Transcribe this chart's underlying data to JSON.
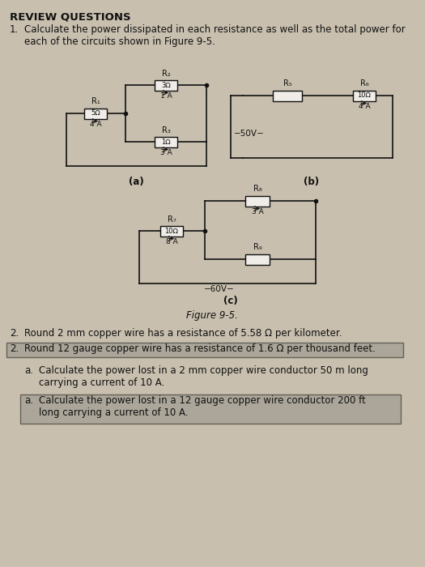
{
  "bg_color": "#c8bfae",
  "title": "REVIEW QUESTIONS",
  "figure_label": "Figure 9-5.",
  "q1_text_num": "1.",
  "q1_text_body": "Calculate the power dissipated in each resistance as well as the total power for\neach of the circuits shown in Figure 9-5.",
  "q2_metric_num": "2.",
  "q2_metric_body": "Round 2 mm copper wire has a resistance of 5.58 Ω per kilometer.",
  "q2_imperial_num": "2.",
  "q2_imperial_body": "Round 12 gauge copper wire has a resistance of 1.6 Ω per thousand feet.",
  "q2a_metric_label": "a.",
  "q2a_metric_body": "Calculate the power lost in a 2 mm copper wire conductor 50 m long\ncarrying a current of 10 A.",
  "q2a_imperial_label": "a.",
  "q2a_imperial_body": "Calculate the power lost in a 12 gauge copper wire conductor 200 ft\nlong carrying a current of 10 A.",
  "highlight_color": "#888880",
  "line_color": "#111111",
  "resistor_fill": "#f0ede8",
  "resistor_border": "#111111",
  "text_color": "#111111",
  "sub_text_color": "#222222"
}
